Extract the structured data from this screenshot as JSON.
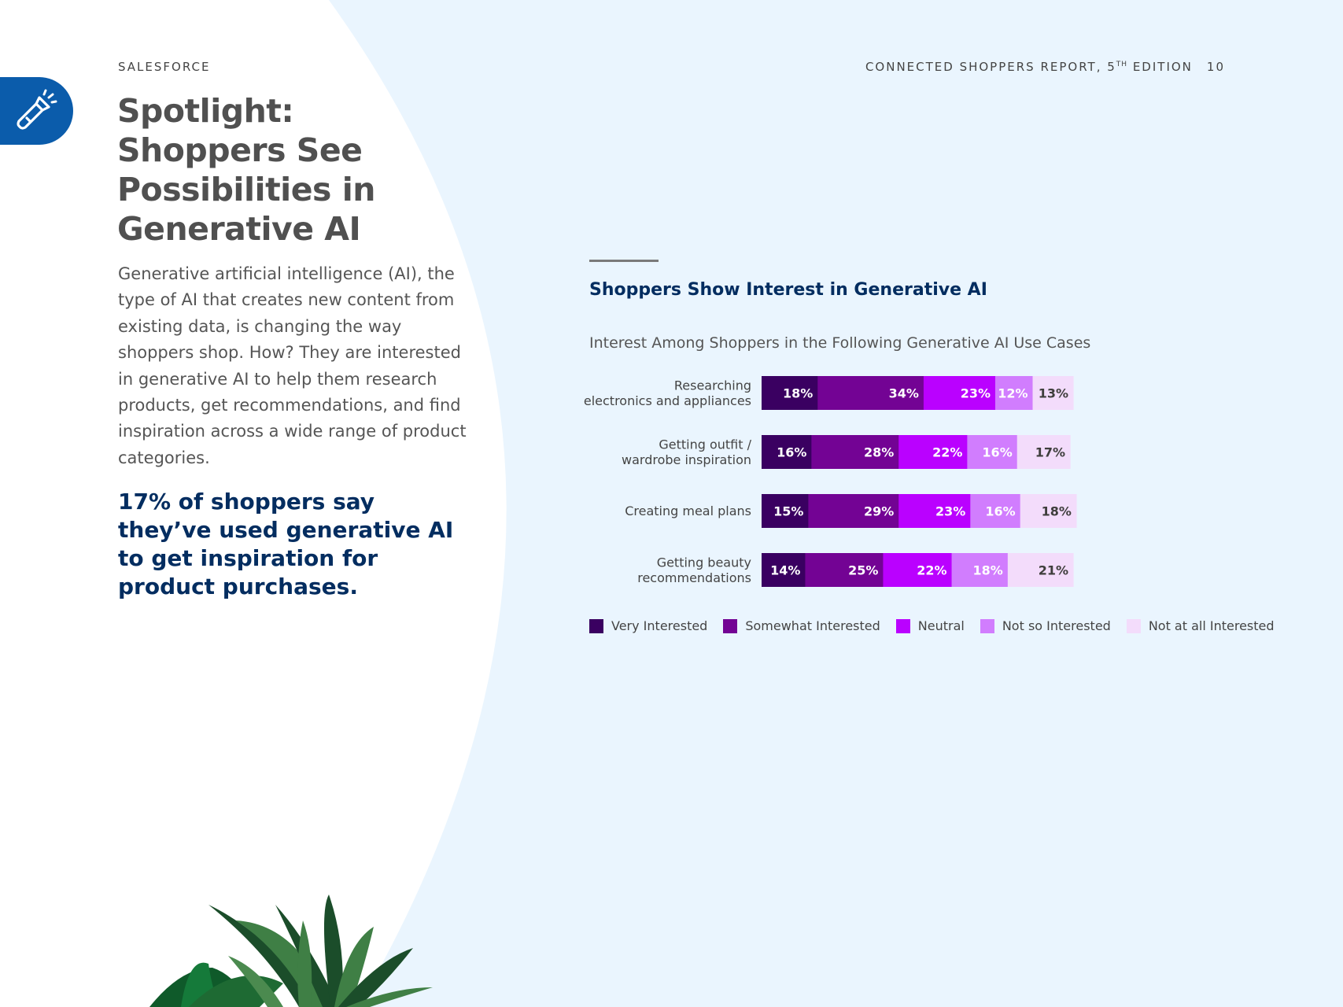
{
  "header": {
    "brand": "SALESFORCE",
    "report_title": "CONNECTED SHOPPERS REPORT, 5",
    "report_title_sup": "TH",
    "report_title_tail": " EDITION",
    "page_number": "10"
  },
  "icon": "flashlight-icon",
  "headline": {
    "line1": "Spotlight:",
    "line2": "Shoppers See",
    "line3": "Possibilities in",
    "line4": "Generative AI"
  },
  "body_text": "Generative artificial intelligence (AI), the type of AI that creates new content from existing data, is changing the way shoppers shop. How? They are interested in generative AI to help them research products, get recommendations, and find inspiration across a wide range of product categories.",
  "highlight": "17% of shoppers say they’ve used generative AI to get inspiration for product purchases.",
  "chart_data": {
    "type": "bar",
    "orientation": "horizontal",
    "stacked": true,
    "title": "Shoppers Show Interest in Generative AI",
    "subtitle": "Interest Among Shoppers in the Following Generative AI Use Cases",
    "categories": [
      [
        "Researching",
        "electronics and appliances"
      ],
      [
        "Getting outfit /",
        "wardrobe inspiration"
      ],
      [
        "Creating meal plans"
      ],
      [
        "Getting beauty",
        "recommendations"
      ]
    ],
    "series": [
      {
        "name": "Very Interested",
        "color": "#3a0061",
        "label_color": "#ffffff",
        "values": [
          18,
          16,
          15,
          14
        ]
      },
      {
        "name": "Somewhat Interested",
        "color": "#730394",
        "label_color": "#ffffff",
        "values": [
          34,
          28,
          29,
          25
        ]
      },
      {
        "name": "Neutral",
        "color": "#ba01ff",
        "label_color": "#ffffff",
        "values": [
          23,
          22,
          23,
          22
        ]
      },
      {
        "name": "Not so Interested",
        "color": "#d17dfe",
        "label_color": "#ffffff",
        "values": [
          12,
          16,
          16,
          18
        ]
      },
      {
        "name": "Not at all Interested",
        "color": "#f3dcfb",
        "label_color": "#3e3e3c",
        "values": [
          13,
          17,
          18,
          21
        ]
      }
    ],
    "value_suffix": "%",
    "xlim": [
      0,
      100
    ],
    "legend_position": "bottom"
  }
}
